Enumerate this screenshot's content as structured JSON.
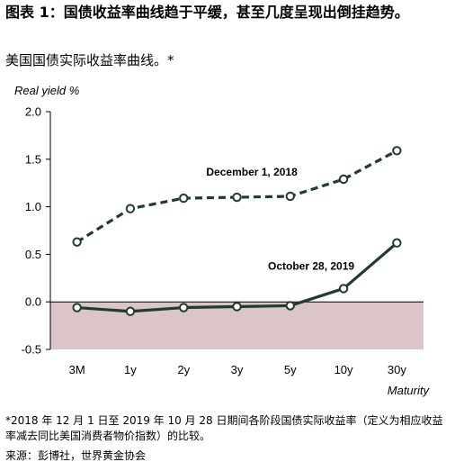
{
  "figure": {
    "title": "图表 1：国债收益率曲线趋于平缓，甚至几度呈现出倒挂趋势。",
    "subtitle": "美国国债实际收益率曲线。*",
    "footnote": "*2018 年 12 月 1 日至 2019 年 10 月 28 日期间各阶段国债实际收益率（定义为相应收益率减去同比美国消费者物价指数）的比较。",
    "source": "来源：彭博社，世界黄金协会"
  },
  "chart_data": {
    "type": "line",
    "categories": [
      "3M",
      "1y",
      "2y",
      "3y",
      "5y",
      "10y",
      "30y"
    ],
    "series": [
      {
        "name": "December 1, 2018",
        "style": "dashed",
        "values": [
          0.63,
          0.98,
          1.09,
          1.1,
          1.11,
          1.29,
          1.59
        ]
      },
      {
        "name": "October 28, 2019",
        "style": "solid",
        "values": [
          -0.06,
          -0.1,
          -0.06,
          -0.05,
          -0.04,
          0.14,
          0.62
        ]
      }
    ],
    "ylabel": "Real yield %",
    "xlabel": "Maturity",
    "ylim": [
      -0.5,
      2.0
    ],
    "yticks": [
      "2.0",
      "1.5",
      "1.0",
      "0.5",
      "0.0",
      "-0.5"
    ],
    "negative_region_shaded": true,
    "grid": false,
    "colors": {
      "line": "#1f3d2c",
      "marker_fill": "#ffffff",
      "negative_band": "#dcc5c9"
    }
  }
}
